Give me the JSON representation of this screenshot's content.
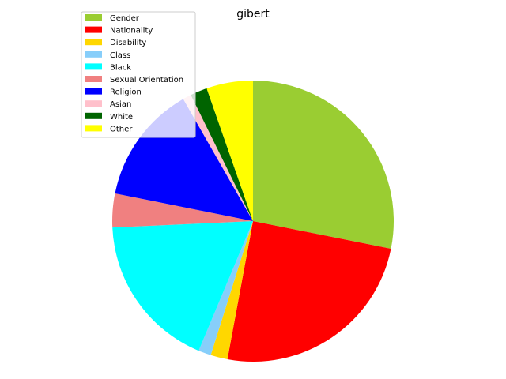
{
  "chart_data": {
    "type": "pie",
    "title": "gibert",
    "start_angle_deg": 90,
    "direction": "clockwise",
    "legend_position": "top-left",
    "slices": [
      {
        "label": "Gender",
        "value": 29.0,
        "color": "#9ACD32"
      },
      {
        "label": "Nationality",
        "value": 25.5,
        "color": "#FF0000"
      },
      {
        "label": "Disability",
        "value": 2.0,
        "color": "#FFD700"
      },
      {
        "label": "Class",
        "value": 1.5,
        "color": "#87CEFA"
      },
      {
        "label": "Black",
        "value": 18.5,
        "color": "#00FFFF"
      },
      {
        "label": "Sexual Orientation",
        "value": 4.0,
        "color": "#F08080"
      },
      {
        "label": "Religion",
        "value": 14.0,
        "color": "#0000FF"
      },
      {
        "label": "Asian",
        "value": 1.0,
        "color": "#FFC0CB"
      },
      {
        "label": "White",
        "value": 2.0,
        "color": "#006400"
      },
      {
        "label": "Other",
        "value": 5.5,
        "color": "#FFFF00"
      }
    ]
  }
}
